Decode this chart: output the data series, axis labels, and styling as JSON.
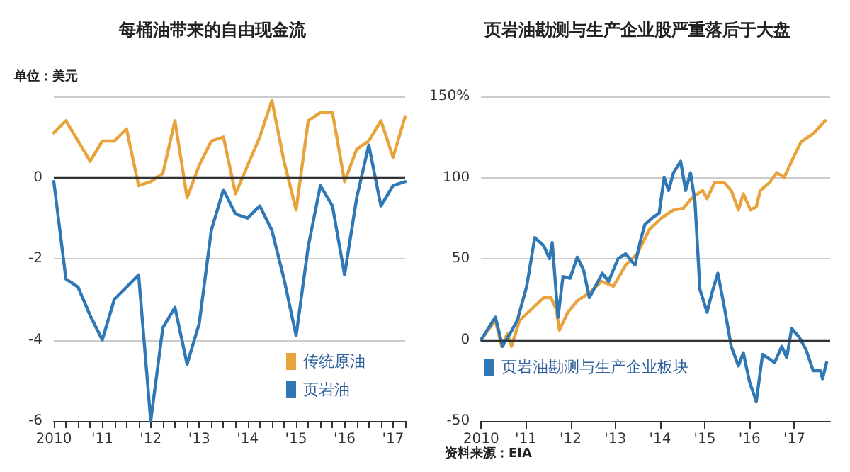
{
  "chart_data": [
    {
      "type": "line",
      "title": "每桶油带来的自由现金流",
      "annotations": [
        "单位：美元"
      ],
      "categories": [
        "2010",
        null,
        null,
        null,
        "'11",
        null,
        null,
        null,
        "'12",
        null,
        null,
        null,
        "'13",
        null,
        null,
        null,
        "'14",
        null,
        null,
        null,
        "'15",
        null,
        null,
        null,
        "'16",
        null,
        null,
        null,
        "'17",
        null
      ],
      "series": [
        {
          "name": "传统原油",
          "color": "#e8a33d",
          "values": [
            1.1,
            1.4,
            0.9,
            0.4,
            0.9,
            0.9,
            1.2,
            -0.2,
            -0.1,
            0.1,
            1.4,
            -0.5,
            0.3,
            0.9,
            1.0,
            -0.4,
            0.3,
            1.0,
            1.9,
            0.4,
            -0.8,
            1.4,
            1.6,
            1.6,
            -0.1,
            0.7,
            0.9,
            1.4,
            0.5,
            1.5
          ]
        },
        {
          "name": "页岩油",
          "color": "#2f78b5",
          "values": [
            -0.1,
            -2.5,
            -2.7,
            -3.4,
            -4.0,
            -3.0,
            -2.7,
            -2.4,
            -6.0,
            -3.7,
            -3.2,
            -4.6,
            -3.6,
            -1.3,
            -0.3,
            -0.9,
            -1.0,
            -0.7,
            -1.3,
            -2.5,
            -3.9,
            -1.7,
            -0.2,
            -0.7,
            -2.4,
            -0.5,
            0.8,
            -0.7,
            -0.2,
            -0.1
          ]
        }
      ],
      "ylim": [
        -6,
        2
      ],
      "yticks": [
        {
          "value": -6,
          "label": "-6"
        },
        {
          "value": -4,
          "label": "-4"
        },
        {
          "value": -2,
          "label": "-2"
        },
        0,
        {
          "value": 2,
          "label": null
        }
      ],
      "ref_lines": [
        {
          "axis": "y",
          "value": 0,
          "color": "#333333"
        }
      ],
      "grid": "y",
      "legend": "bottom right",
      "marker": "none",
      "line_style": "solid"
    },
    {
      "type": "line",
      "title": "页岩油勘测与生产企业股严重落后于大盘",
      "annotations": [
        "资料来源：EIA"
      ],
      "xlim": [
        2010,
        2017.8
      ],
      "xticks": [
        {
          "value": 2010,
          "label": "2010"
        },
        {
          "value": 2011,
          "label": "'11"
        },
        {
          "value": 2012,
          "label": "'12"
        },
        {
          "value": 2013,
          "label": "'13"
        },
        {
          "value": 2014,
          "label": "'14"
        },
        {
          "value": 2015,
          "label": "'15"
        },
        {
          "value": 2016,
          "label": "'16"
        },
        {
          "value": 2017,
          "label": "'17"
        }
      ],
      "series": [
        {
          "color": "#e8a33d",
          "x": [
            2010.0,
            2010.32,
            2010.46,
            2010.59,
            2010.68,
            2010.86,
            2011.13,
            2011.4,
            2011.56,
            2011.68,
            2011.75,
            2011.94,
            2012.15,
            2012.42,
            2012.69,
            2012.96,
            2013.23,
            2013.49,
            2013.76,
            2014.03,
            2014.3,
            2014.52,
            2014.73,
            2014.95,
            2015.05,
            2015.22,
            2015.43,
            2015.59,
            2015.75,
            2015.86,
            2016.02,
            2016.15,
            2016.24,
            2016.45,
            2016.61,
            2016.77,
            2016.99,
            2017.15,
            2017.42,
            2017.69
          ],
          "values": [
            0,
            12,
            -4,
            4,
            -4,
            12,
            19,
            26,
            26,
            19,
            6,
            17,
            24,
            29,
            36,
            33,
            46,
            53,
            68,
            75,
            80,
            81,
            88,
            92,
            87,
            97,
            97,
            92,
            80,
            90,
            80,
            82,
            92,
            97,
            103,
            100,
            113,
            122,
            127,
            135
          ]
        },
        {
          "name": "页岩油勘测与生产企业板块",
          "color": "#2f78b5",
          "x": [
            2010.0,
            2010.32,
            2010.48,
            2010.65,
            2010.81,
            2011.02,
            2011.2,
            2011.4,
            2011.53,
            2011.59,
            2011.72,
            2011.83,
            2011.99,
            2012.15,
            2012.29,
            2012.42,
            2012.71,
            2012.85,
            2013.06,
            2013.23,
            2013.44,
            2013.55,
            2013.66,
            2013.82,
            2013.98,
            2014.09,
            2014.19,
            2014.3,
            2014.46,
            2014.57,
            2014.68,
            2014.78,
            2014.89,
            2015.05,
            2015.16,
            2015.29,
            2015.43,
            2015.59,
            2015.75,
            2015.86,
            2016.0,
            2016.15,
            2016.29,
            2016.56,
            2016.72,
            2016.83,
            2016.94,
            2017.1,
            2017.26,
            2017.42,
            2017.58,
            2017.63,
            2017.72
          ],
          "values": [
            0,
            14,
            -4,
            4,
            12,
            33,
            63,
            58,
            50,
            60,
            14,
            39,
            38,
            51,
            43,
            26,
            41,
            36,
            50,
            53,
            46,
            60,
            71,
            75,
            78,
            100,
            92,
            103,
            110,
            92,
            103,
            85,
            31,
            17,
            29,
            41,
            21,
            -4,
            -16,
            -8,
            -26,
            -38,
            -9,
            -14,
            -4,
            -11,
            7,
            2,
            -6,
            -19,
            -19,
            -24,
            -14
          ]
        }
      ],
      "ylim": [
        -50,
        150
      ],
      "yticks": [
        -50,
        0,
        50,
        100,
        {
          "value": 150,
          "label": "150%"
        }
      ],
      "ref_lines": [
        {
          "axis": "y",
          "value": 0,
          "color": "#333333"
        }
      ],
      "grid": "y",
      "legend": "bottom left",
      "marker": "none",
      "line_style": "solid"
    }
  ]
}
